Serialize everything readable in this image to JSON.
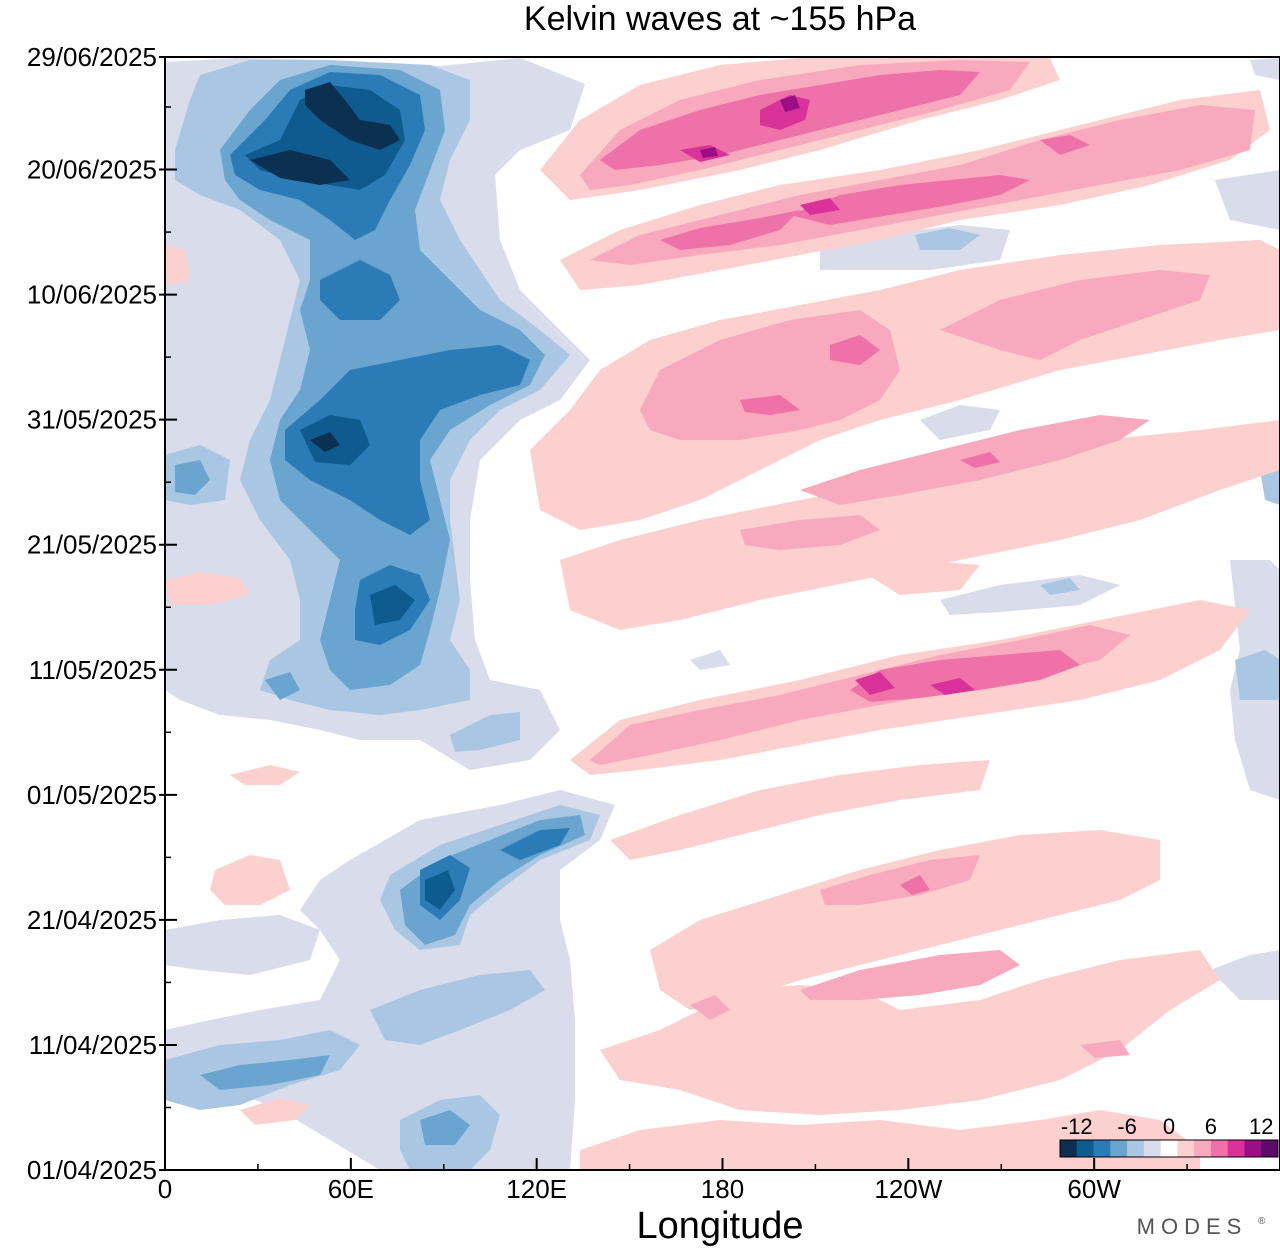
{
  "chart_data": {
    "type": "heatmap",
    "title": "Kelvin waves at ~155 hPa",
    "xlabel": "Longitude",
    "ylabel": "",
    "x_ticks": [
      "0",
      "60E",
      "120E",
      "180",
      "120W",
      "60W"
    ],
    "x_tick_values": [
      0,
      60,
      120,
      180,
      240,
      300
    ],
    "xlim": [
      0,
      360
    ],
    "y_ticks": [
      "01/04/2025",
      "11/04/2025",
      "21/04/2025",
      "01/05/2025",
      "11/05/2025",
      "21/05/2025",
      "31/05/2025",
      "10/06/2025",
      "20/06/2025",
      "29/06/2025"
    ],
    "y_tick_values": [
      "2025-04-01",
      "2025-04-11",
      "2025-04-21",
      "2025-05-01",
      "2025-05-11",
      "2025-05-21",
      "2025-05-31",
      "2025-06-10",
      "2025-06-20",
      "2025-06-29"
    ],
    "ylim": [
      "2025-04-01",
      "2025-06-29"
    ],
    "colorbar": {
      "tick_labels": [
        "-12",
        "-6",
        "0",
        "6",
        "12"
      ],
      "tick_values": [
        -12,
        -6,
        0,
        6,
        12
      ],
      "levels": [
        -12,
        -10,
        -8,
        -6,
        -4,
        -2,
        2,
        4,
        6,
        8,
        10,
        12
      ],
      "colors": [
        "#0b3050",
        "#0d5b8f",
        "#2b7bb6",
        "#6aa5cf",
        "#a9c6e3",
        "#d9dcea",
        "#ffffff",
        "#fbd0cf",
        "#f8a9bd",
        "#ee71a8",
        "#d9339b",
        "#9b0f86",
        "#5e0a6b"
      ]
    },
    "features": [
      {
        "sign": "negative",
        "lon": [
          0,
          140
        ],
        "dates": [
          "2025-05-08",
          "2025-06-29"
        ],
        "peak": -12
      },
      {
        "sign": "negative",
        "lon": [
          50,
          120
        ],
        "dates": [
          "2025-04-14",
          "2025-04-28"
        ],
        "peak": -10
      },
      {
        "sign": "negative",
        "lon": [
          0,
          130
        ],
        "dates": [
          "2025-04-01",
          "2025-04-14"
        ],
        "peak": -8
      },
      {
        "sign": "positive",
        "lon": [
          160,
          340
        ],
        "dates": [
          "2025-06-20",
          "2025-06-29"
        ],
        "peak": 12
      },
      {
        "sign": "positive",
        "lon": [
          150,
          360
        ],
        "dates": [
          "2025-06-12",
          "2025-06-22"
        ],
        "peak": 10
      },
      {
        "sign": "positive",
        "lon": [
          130,
          360
        ],
        "dates": [
          "2025-05-25",
          "2025-06-10"
        ],
        "peak": 10
      },
      {
        "sign": "positive",
        "lon": [
          150,
          330
        ],
        "dates": [
          "2025-05-04",
          "2025-05-16"
        ],
        "peak": 10
      },
      {
        "sign": "positive",
        "lon": [
          200,
          330
        ],
        "dates": [
          "2025-04-14",
          "2025-04-26"
        ],
        "peak": 8
      }
    ],
    "grid": false,
    "legend": "bottom-right colorbar"
  },
  "brand": "MODES"
}
